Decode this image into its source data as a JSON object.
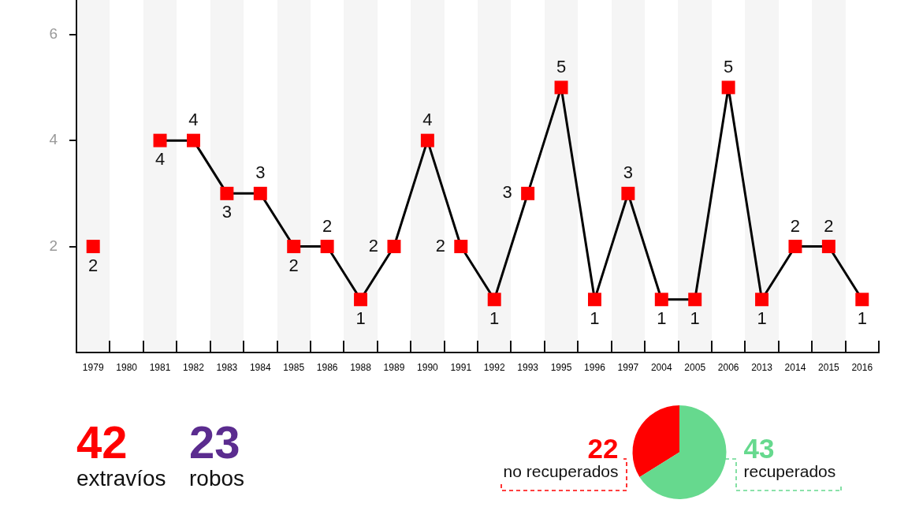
{
  "chart_data": [
    {
      "type": "line",
      "categories": [
        "1979",
        "1980",
        "1981",
        "1982",
        "1983",
        "1984",
        "1985",
        "1986",
        "1988",
        "1989",
        "1990",
        "1991",
        "1992",
        "1993",
        "1995",
        "1996",
        "1997",
        "2004",
        "2005",
        "2006",
        "2013",
        "2014",
        "2015",
        "2016"
      ],
      "series": [
        {
          "color": "#000000",
          "colors": [
            "#ff0000",
            "#ff0000",
            "#ff0000",
            "#ff0000",
            "#ff0000",
            "#ff0000",
            "#ff0000",
            "#ff0000",
            "#ff0000",
            "#ff0000",
            "#ff0000",
            "#ff0000",
            "#ff0000",
            "#ff0000",
            "#ff0000",
            "#ff0000",
            "#ff0000",
            "#ff0000",
            "#ff0000",
            "#ff0000",
            "#ff0000",
            "#ff0000",
            "#ff0000",
            "#ff0000"
          ],
          "values": [
            2,
            null,
            4,
            4,
            3,
            3,
            2,
            2,
            1,
            2,
            4,
            2,
            1,
            3,
            5,
            1,
            3,
            1,
            1,
            5,
            1,
            2,
            2,
            1
          ],
          "value_labels": [
            "2",
            null,
            "4",
            "4",
            "3",
            "3",
            "2",
            "2",
            "1",
            "2",
            "4",
            "2",
            "1",
            "3",
            "5",
            "1",
            "3",
            "1",
            "1",
            "5",
            "1",
            "2",
            "2",
            "1"
          ]
        }
      ],
      "ylim": [
        0,
        6.65
      ],
      "yticks": [
        2,
        4,
        6
      ],
      "marker": "square",
      "line_style": "solid"
    },
    {
      "type": "other",
      "categories": [
        "extravíos",
        "robos"
      ],
      "values": [
        42,
        23
      ],
      "colors": [
        "#ff0000",
        "#5b2c8f"
      ],
      "data_labels": true
    },
    {
      "type": "pie",
      "categories": [
        "no recuperados",
        "recuperados"
      ],
      "values": [
        22,
        43
      ],
      "colors": [
        "#ff0000",
        "#66d98e"
      ],
      "data_labels": true
    }
  ]
}
